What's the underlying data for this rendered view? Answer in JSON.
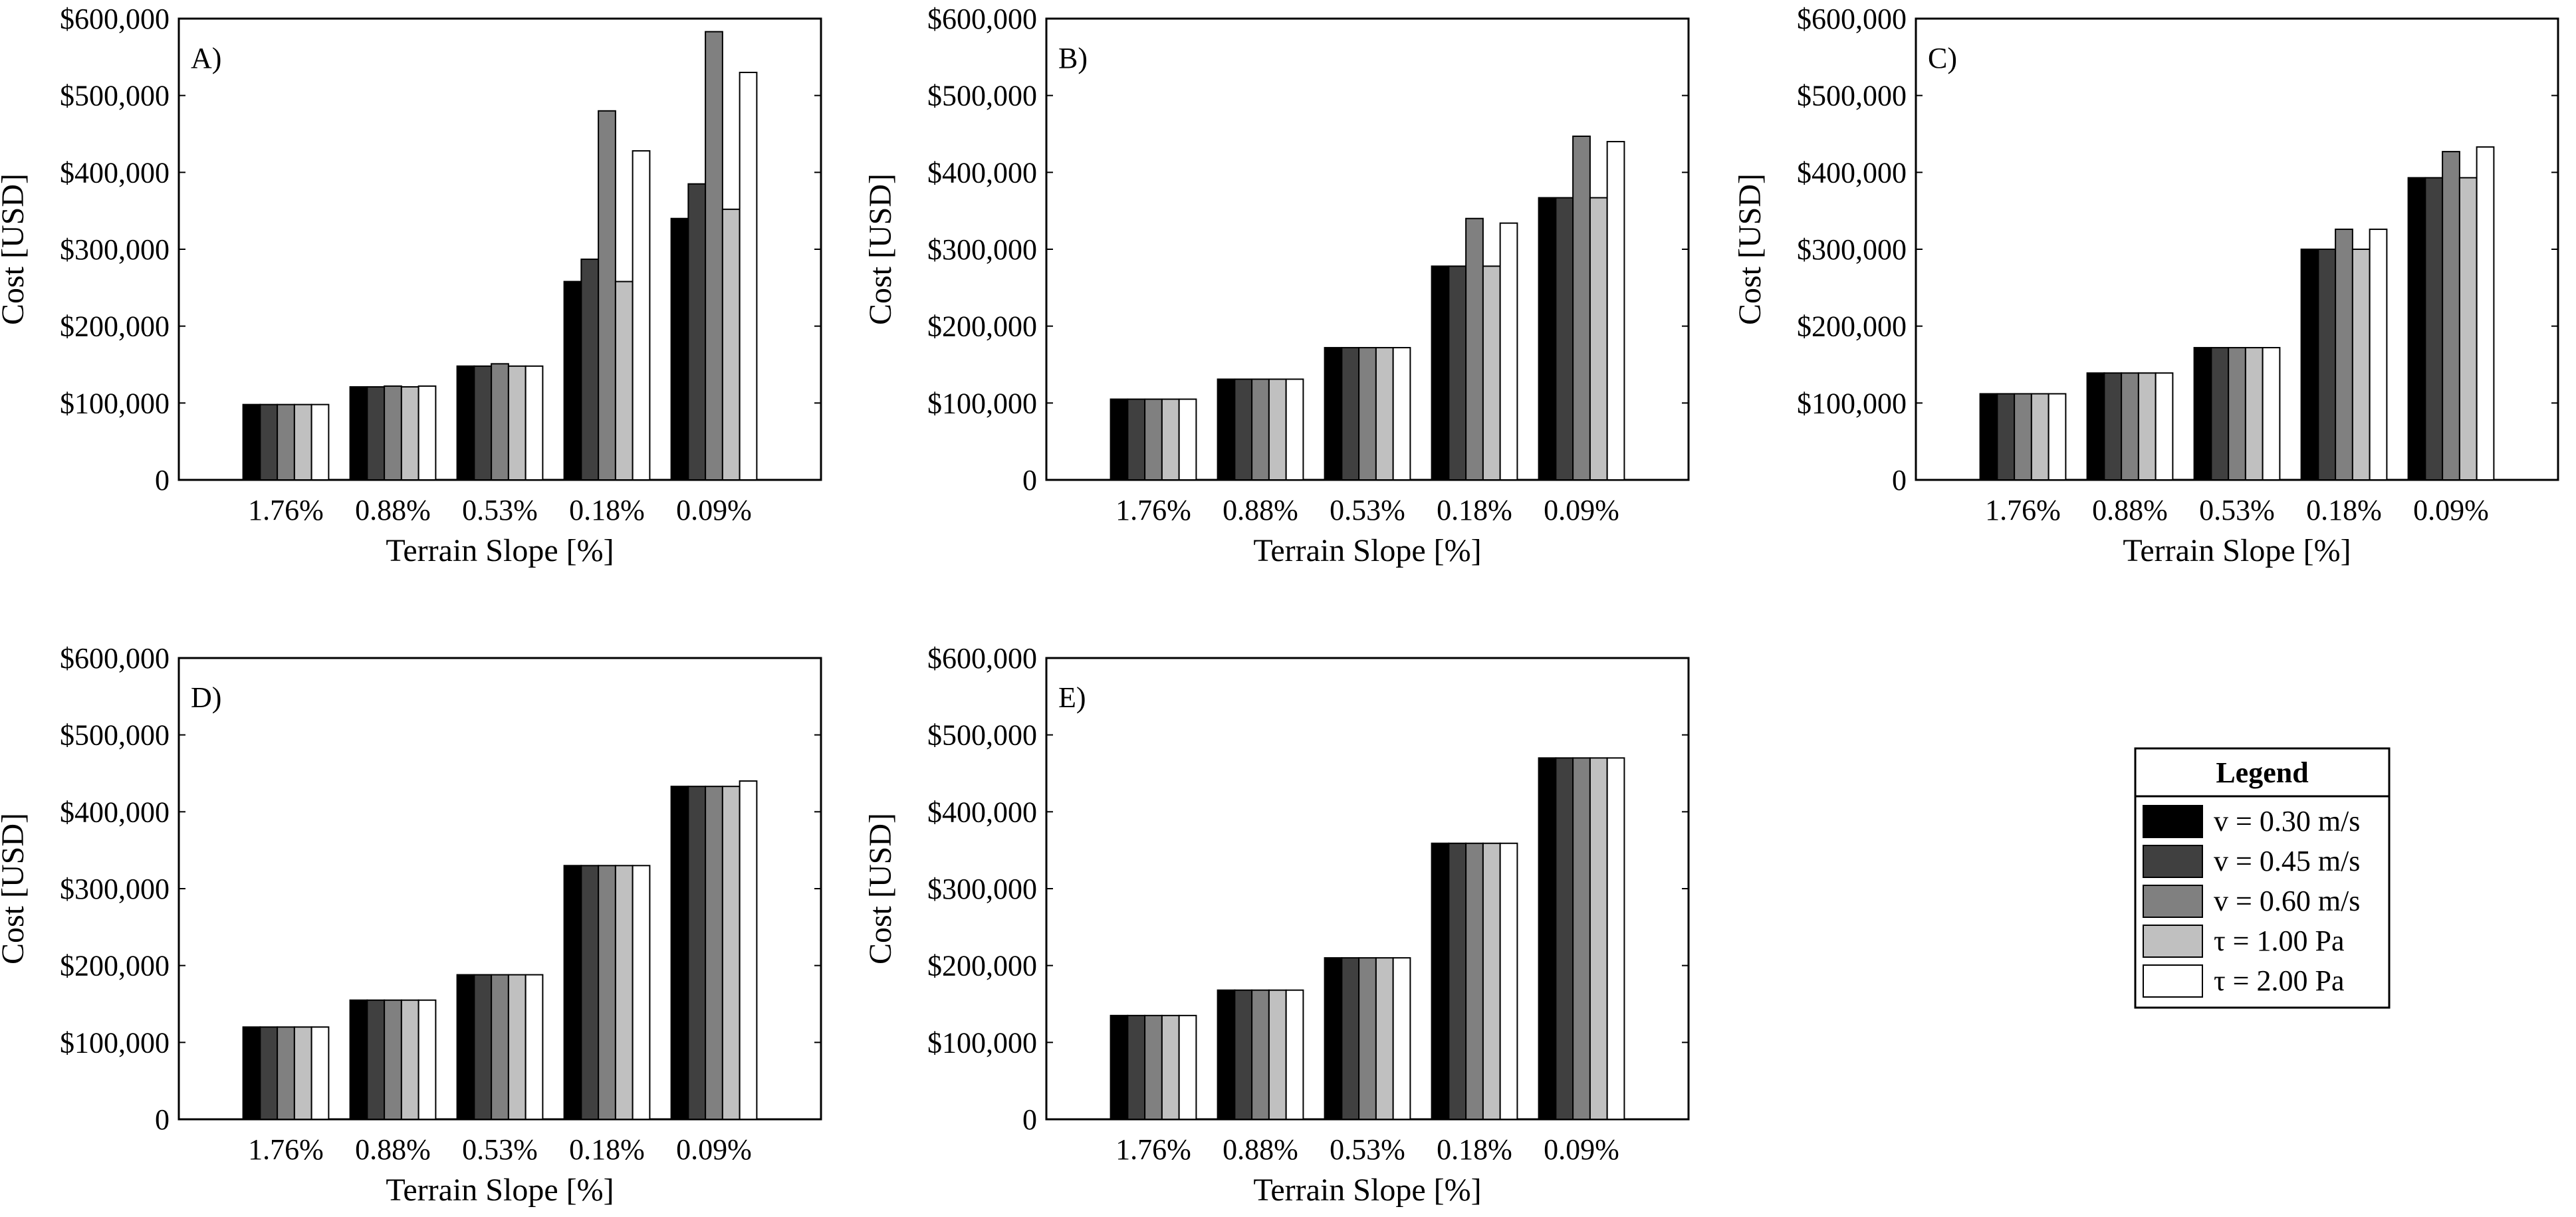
{
  "chart_data": [
    {
      "type": "bar",
      "panel_label": "A)",
      "categories": [
        "1.76%",
        "0.88%",
        "0.53%",
        "0.18%",
        "0.09%"
      ],
      "xlabel": "Terrain Slope [%]",
      "ylabel": "Cost [USD]",
      "ylim": [
        0,
        600000
      ],
      "yticks": [
        0,
        100000,
        200000,
        300000,
        400000,
        500000,
        600000
      ],
      "ytick_labels": [
        "0",
        "$100,000",
        "$200,000",
        "$300,000",
        "$400,000",
        "$500,000",
        "$600,000"
      ],
      "series": [
        {
          "name": "v = 0.30 m/s",
          "values": [
            98000,
            121000,
            148000,
            258000,
            340000
          ]
        },
        {
          "name": "v = 0.45 m/s",
          "values": [
            98000,
            121000,
            148000,
            287000,
            385000
          ]
        },
        {
          "name": "v = 0.60 m/s",
          "values": [
            98000,
            122000,
            151000,
            480000,
            583000
          ]
        },
        {
          "name": "τ = 1.00 Pa",
          "values": [
            98000,
            121000,
            148000,
            258000,
            352000
          ]
        },
        {
          "name": "τ = 2.00 Pa",
          "values": [
            98000,
            122000,
            148000,
            428000,
            530000
          ]
        }
      ]
    },
    {
      "type": "bar",
      "panel_label": "B)",
      "categories": [
        "1.76%",
        "0.88%",
        "0.53%",
        "0.18%",
        "0.09%"
      ],
      "xlabel": "Terrain Slope [%]",
      "ylabel": "Cost [USD]",
      "ylim": [
        0,
        600000
      ],
      "yticks": [
        0,
        100000,
        200000,
        300000,
        400000,
        500000,
        600000
      ],
      "ytick_labels": [
        "0",
        "$100,000",
        "$200,000",
        "$300,000",
        "$400,000",
        "$500,000",
        "$600,000"
      ],
      "series": [
        {
          "name": "v = 0.30 m/s",
          "values": [
            105000,
            131000,
            172000,
            278000,
            367000
          ]
        },
        {
          "name": "v = 0.45 m/s",
          "values": [
            105000,
            131000,
            172000,
            278000,
            367000
          ]
        },
        {
          "name": "v = 0.60 m/s",
          "values": [
            105000,
            131000,
            172000,
            340000,
            447000
          ]
        },
        {
          "name": "τ = 1.00 Pa",
          "values": [
            105000,
            131000,
            172000,
            278000,
            367000
          ]
        },
        {
          "name": "τ = 2.00 Pa",
          "values": [
            105000,
            131000,
            172000,
            334000,
            440000
          ]
        }
      ]
    },
    {
      "type": "bar",
      "panel_label": "C)",
      "categories": [
        "1.76%",
        "0.88%",
        "0.53%",
        "0.18%",
        "0.09%"
      ],
      "xlabel": "Terrain Slope [%]",
      "ylabel": "Cost [USD]",
      "ylim": [
        0,
        600000
      ],
      "yticks": [
        0,
        100000,
        200000,
        300000,
        400000,
        500000,
        600000
      ],
      "ytick_labels": [
        "0",
        "$100,000",
        "$200,000",
        "$300,000",
        "$400,000",
        "$500,000",
        "$600,000"
      ],
      "series": [
        {
          "name": "v = 0.30 m/s",
          "values": [
            112000,
            139000,
            172000,
            300000,
            393000
          ]
        },
        {
          "name": "v = 0.45 m/s",
          "values": [
            112000,
            139000,
            172000,
            300000,
            393000
          ]
        },
        {
          "name": "v = 0.60 m/s",
          "values": [
            112000,
            139000,
            172000,
            326000,
            427000
          ]
        },
        {
          "name": "τ = 1.00 Pa",
          "values": [
            112000,
            139000,
            172000,
            300000,
            393000
          ]
        },
        {
          "name": "τ = 2.00 Pa",
          "values": [
            112000,
            139000,
            172000,
            326000,
            433000
          ]
        }
      ]
    },
    {
      "type": "bar",
      "panel_label": "D)",
      "categories": [
        "1.76%",
        "0.88%",
        "0.53%",
        "0.18%",
        "0.09%"
      ],
      "xlabel": "Terrain Slope [%]",
      "ylabel": "Cost [USD]",
      "ylim": [
        0,
        600000
      ],
      "yticks": [
        0,
        100000,
        200000,
        300000,
        400000,
        500000,
        600000
      ],
      "ytick_labels": [
        "0",
        "$100,000",
        "$200,000",
        "$300,000",
        "$400,000",
        "$500,000",
        "$600,000"
      ],
      "series": [
        {
          "name": "v = 0.30 m/s",
          "values": [
            120000,
            155000,
            188000,
            330000,
            433000
          ]
        },
        {
          "name": "v = 0.45 m/s",
          "values": [
            120000,
            155000,
            188000,
            330000,
            433000
          ]
        },
        {
          "name": "v = 0.60 m/s",
          "values": [
            120000,
            155000,
            188000,
            330000,
            433000
          ]
        },
        {
          "name": "τ = 1.00 Pa",
          "values": [
            120000,
            155000,
            188000,
            330000,
            433000
          ]
        },
        {
          "name": "τ = 2.00 Pa",
          "values": [
            120000,
            155000,
            188000,
            330000,
            440000
          ]
        }
      ]
    },
    {
      "type": "bar",
      "panel_label": "E)",
      "categories": [
        "1.76%",
        "0.88%",
        "0.53%",
        "0.18%",
        "0.09%"
      ],
      "xlabel": "Terrain Slope [%]",
      "ylabel": "Cost [USD]",
      "ylim": [
        0,
        600000
      ],
      "yticks": [
        0,
        100000,
        200000,
        300000,
        400000,
        500000,
        600000
      ],
      "ytick_labels": [
        "0",
        "$100,000",
        "$200,000",
        "$300,000",
        "$400,000",
        "$500,000",
        "$600,000"
      ],
      "series": [
        {
          "name": "v = 0.30 m/s",
          "values": [
            135000,
            168000,
            210000,
            359000,
            470000
          ]
        },
        {
          "name": "v = 0.45 m/s",
          "values": [
            135000,
            168000,
            210000,
            359000,
            470000
          ]
        },
        {
          "name": "v = 0.60 m/s",
          "values": [
            135000,
            168000,
            210000,
            359000,
            470000
          ]
        },
        {
          "name": "τ = 1.00 Pa",
          "values": [
            135000,
            168000,
            210000,
            359000,
            470000
          ]
        },
        {
          "name": "τ = 2.00 Pa",
          "values": [
            135000,
            168000,
            210000,
            359000,
            470000
          ]
        }
      ]
    }
  ],
  "legend": {
    "title": "Legend",
    "entries": [
      {
        "label": "v = 0.30 m/s",
        "color": "#000000"
      },
      {
        "label": "v = 0.45 m/s",
        "color": "#404040"
      },
      {
        "label": "v = 0.60 m/s",
        "color": "#808080"
      },
      {
        "label": "τ = 1.00 Pa",
        "color": "#c0c0c0"
      },
      {
        "label": "τ = 2.00 Pa",
        "color": "#ffffff"
      }
    ]
  }
}
